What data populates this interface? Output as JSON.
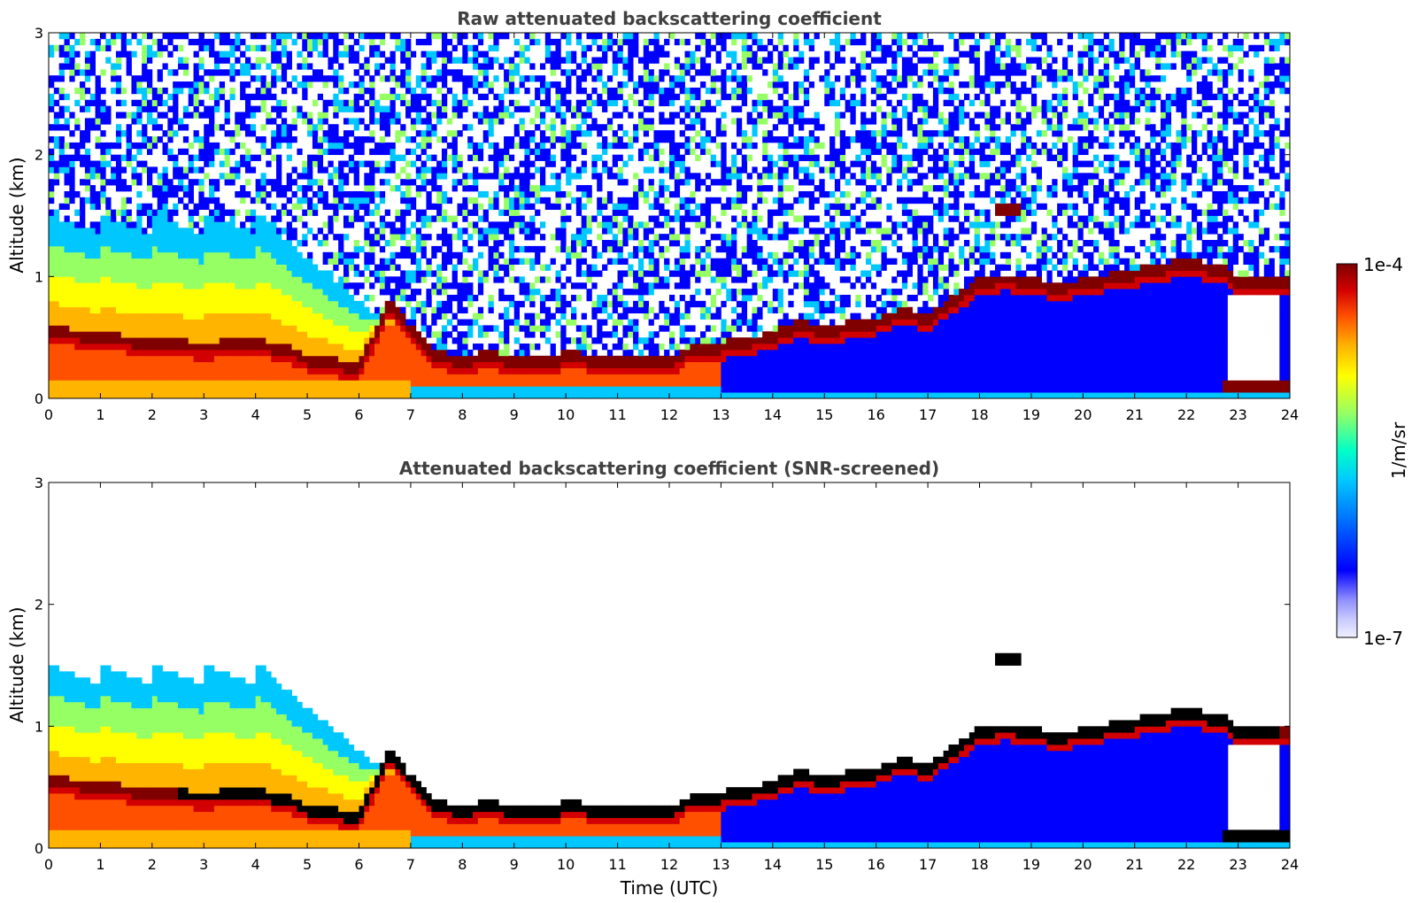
{
  "chart_data": [
    {
      "type": "heatmap",
      "title": "Raw attenuated backscattering coefficient",
      "xlabel": "",
      "ylabel": "Altitude (km)",
      "xlim": [
        0,
        24
      ],
      "ylim": [
        0,
        3
      ],
      "xticks": [
        "0",
        "1",
        "2",
        "3",
        "4",
        "5",
        "6",
        "7",
        "8",
        "9",
        "10",
        "11",
        "12",
        "13",
        "14",
        "15",
        "16",
        "17",
        "18",
        "19",
        "20",
        "21",
        "22",
        "23",
        "24"
      ],
      "yticks": [
        "0",
        "1",
        "2",
        "3"
      ],
      "grid": false,
      "screened": false
    },
    {
      "type": "heatmap",
      "title": "Attenuated backscattering coefficient (SNR-screened)",
      "xlabel": "Time (UTC)",
      "ylabel": "Altitude (km)",
      "xlim": [
        0,
        24
      ],
      "ylim": [
        0,
        3
      ],
      "xticks": [
        "0",
        "1",
        "2",
        "3",
        "4",
        "5",
        "6",
        "7",
        "8",
        "9",
        "10",
        "11",
        "12",
        "13",
        "14",
        "15",
        "16",
        "17",
        "18",
        "19",
        "20",
        "21",
        "22",
        "23",
        "24"
      ],
      "yticks": [
        "0",
        "1",
        "2",
        "3"
      ],
      "grid": false,
      "screened": true
    }
  ],
  "colorbar": {
    "label": "1/m/sr",
    "max_label": "1e-4",
    "min_label": "1e-7",
    "colors": [
      "#f0f0ff",
      "#c8c8ff",
      "#9090ff",
      "#0000ff",
      "#0064ff",
      "#00c8ff",
      "#00ffc8",
      "#96ff64",
      "#ffff00",
      "#ffb400",
      "#ff5000",
      "#d20000",
      "#800000"
    ]
  },
  "layer_features": {
    "layer_top_km": [
      [
        0,
        0.55
      ],
      [
        1,
        0.5
      ],
      [
        2,
        0.45
      ],
      [
        3,
        0.42
      ],
      [
        4,
        0.45
      ],
      [
        4.7,
        0.38
      ],
      [
        5,
        0.32
      ],
      [
        6,
        0.25
      ],
      [
        6.6,
        0.78
      ],
      [
        7,
        0.55
      ],
      [
        7.5,
        0.35
      ],
      [
        8,
        0.3
      ],
      [
        8.5,
        0.35
      ],
      [
        9,
        0.3
      ],
      [
        9.7,
        0.28
      ],
      [
        10,
        0.35
      ],
      [
        11,
        0.28
      ],
      [
        12,
        0.28
      ],
      [
        12.5,
        0.42
      ],
      [
        13,
        0.42
      ],
      [
        14,
        0.5
      ],
      [
        14.5,
        0.6
      ],
      [
        15,
        0.55
      ],
      [
        16,
        0.62
      ],
      [
        16.5,
        0.7
      ],
      [
        17,
        0.65
      ],
      [
        17.5,
        0.8
      ],
      [
        18,
        0.95
      ],
      [
        18.5,
        0.98
      ],
      [
        19,
        0.95
      ],
      [
        19.5,
        0.9
      ],
      [
        22,
        1.1
      ],
      [
        22.7,
        1.05
      ],
      [
        23,
        0.95
      ],
      [
        24,
        0.95
      ]
    ],
    "elevated_layer": {
      "x_start": 18.3,
      "x_end": 18.8,
      "altitude_km": 1.55
    },
    "low_layer": {
      "x_start": 22.7,
      "x_end": 24,
      "altitude_km": 0.08
    }
  }
}
